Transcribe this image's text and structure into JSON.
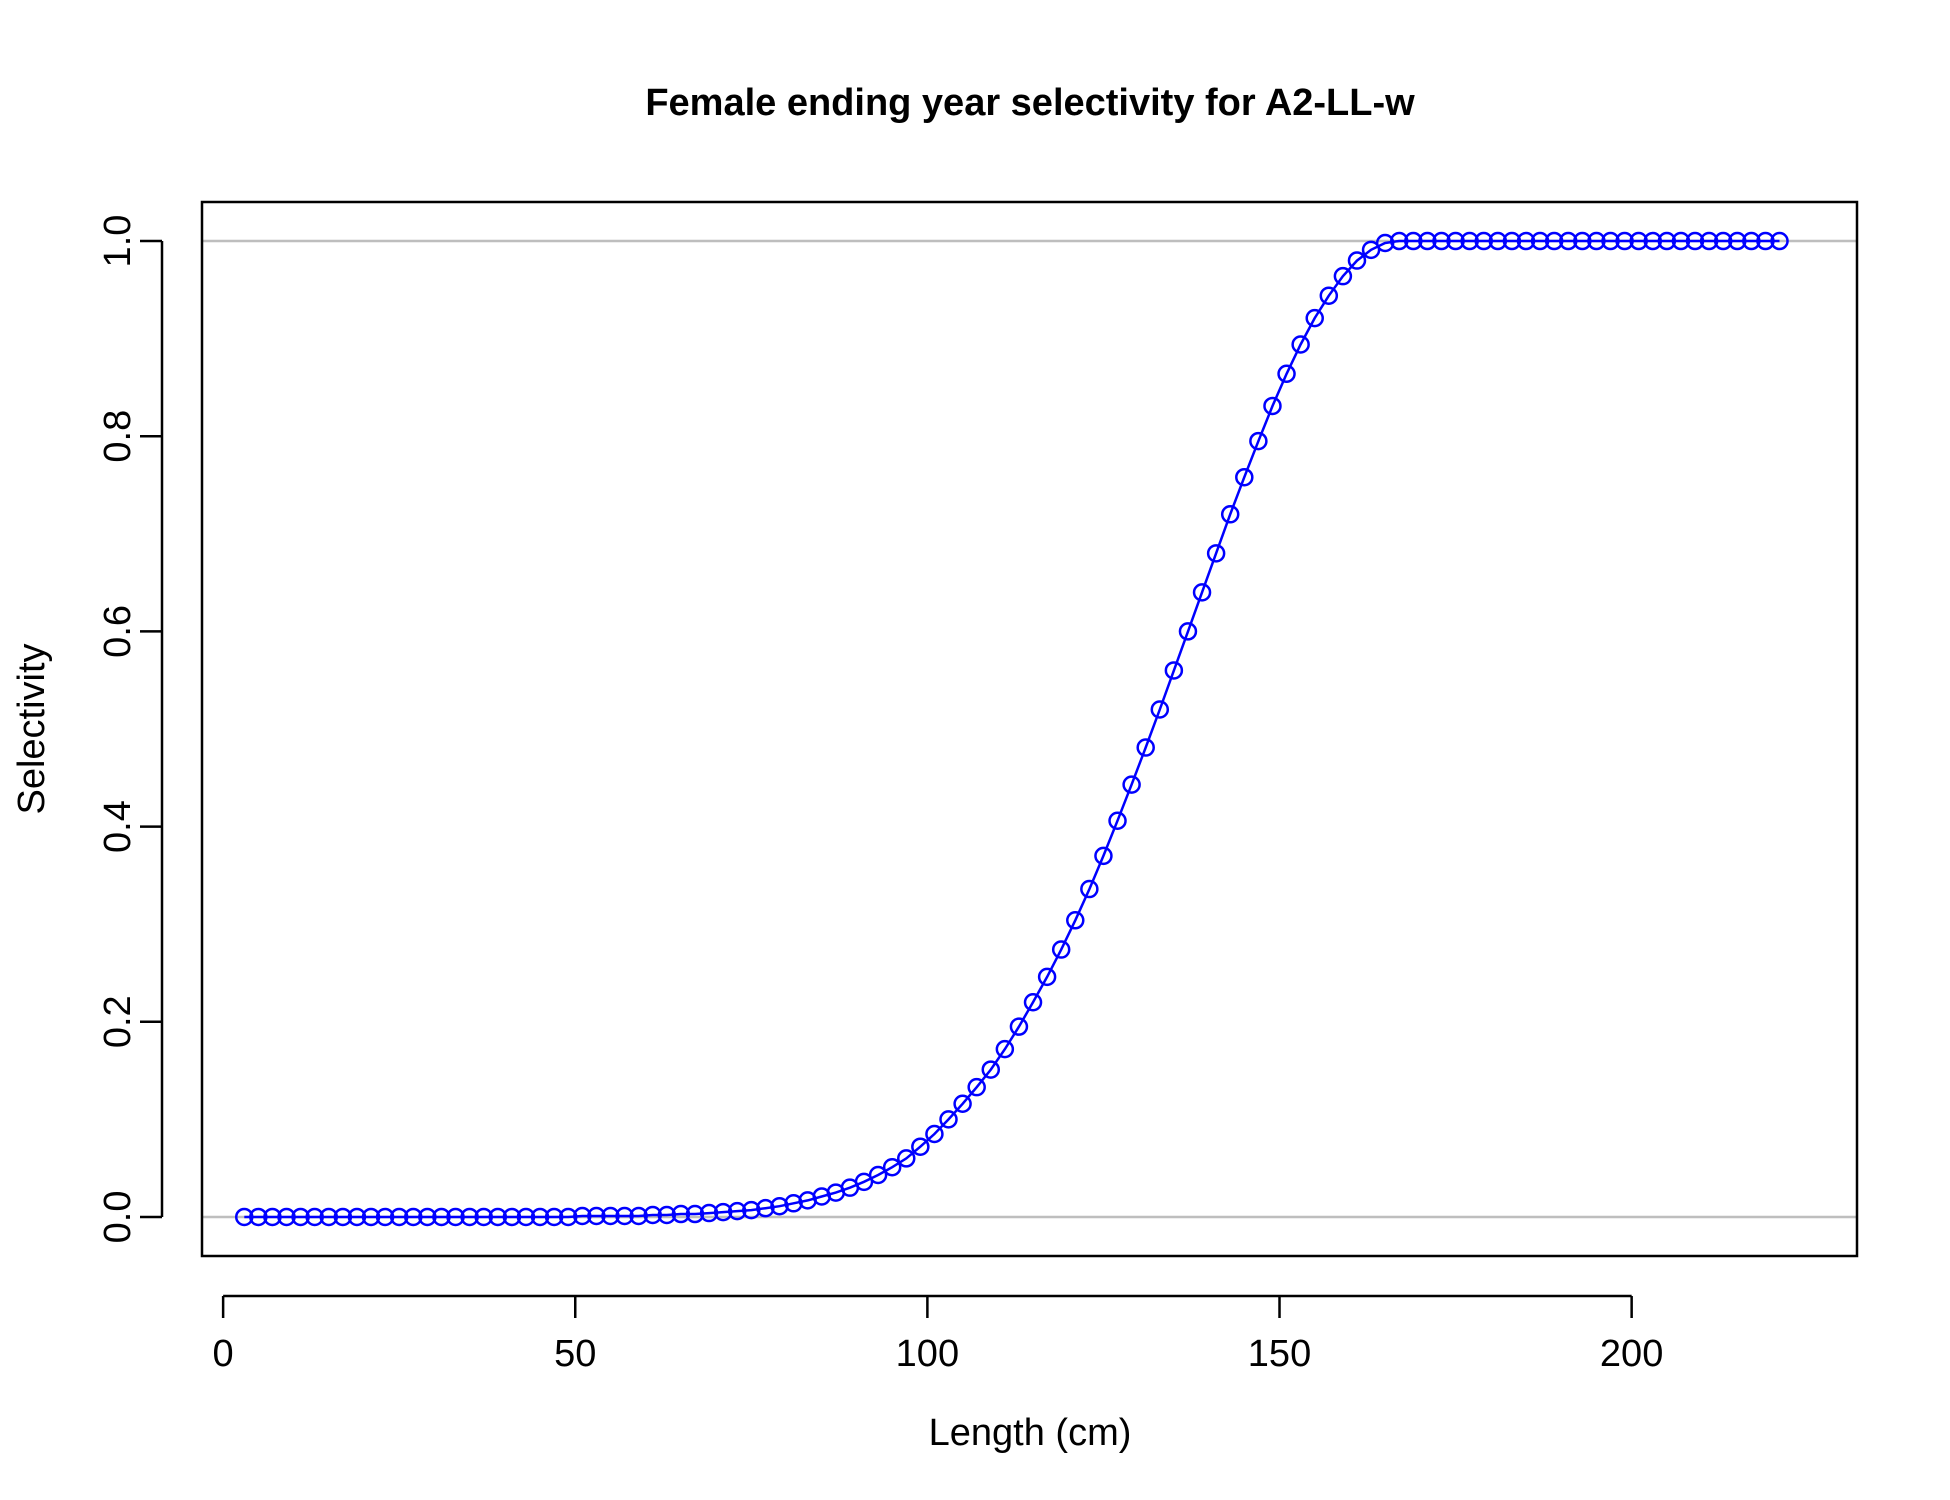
{
  "chart_data": {
    "type": "line",
    "title": "Female ending year selectivity for A2-LL-w",
    "xlabel": "Length (cm)",
    "ylabel": "Selectivity",
    "xlim": [
      -3,
      232
    ],
    "ylim": [
      -0.04,
      1.04
    ],
    "xticks": [
      0,
      50,
      100,
      150,
      200
    ],
    "xtick_labels": [
      "0",
      "50",
      "100",
      "150",
      "200"
    ],
    "yticks": [
      0.0,
      0.2,
      0.4,
      0.6,
      0.8,
      1.0
    ],
    "ytick_labels": [
      "0.0",
      "0.2",
      "0.4",
      "0.6",
      "0.8",
      "1.0"
    ],
    "reference_lines_y": [
      0,
      1
    ],
    "reference_line_color": "#bebebe",
    "series": [
      {
        "color": "#0000ff",
        "marker": "open-circle",
        "x": [
          3,
          5,
          7,
          9,
          11,
          13,
          15,
          17,
          19,
          21,
          23,
          25,
          27,
          29,
          31,
          33,
          35,
          37,
          39,
          41,
          43,
          45,
          47,
          49,
          51,
          53,
          55,
          57,
          59,
          61,
          63,
          65,
          67,
          69,
          71,
          73,
          75,
          77,
          79,
          81,
          83,
          85,
          87,
          89,
          91,
          93,
          95,
          97,
          99,
          101,
          103,
          105,
          107,
          109,
          111,
          113,
          115,
          117,
          119,
          121,
          123,
          125,
          127,
          129,
          131,
          133,
          135,
          137,
          139,
          141,
          143,
          145,
          147,
          149,
          151,
          153,
          155,
          157,
          159,
          161,
          163,
          165,
          167,
          169,
          171,
          173,
          175,
          177,
          179,
          181,
          183,
          185,
          187,
          189,
          191,
          193,
          195,
          197,
          199,
          201,
          203,
          205,
          207,
          209,
          211,
          213,
          215,
          217,
          219,
          221
        ],
        "y": [
          0,
          0,
          0,
          0,
          0,
          0,
          0,
          0,
          0,
          0,
          0,
          0,
          0,
          0,
          0,
          0,
          0,
          0,
          0,
          0,
          0,
          0,
          0,
          0,
          0.001,
          0.001,
          0.001,
          0.001,
          0.001,
          0.002,
          0.002,
          0.003,
          0.003,
          0.004,
          0.005,
          0.006,
          0.007,
          0.009,
          0.011,
          0.014,
          0.017,
          0.021,
          0.025,
          0.03,
          0.036,
          0.043,
          0.051,
          0.06,
          0.072,
          0.085,
          0.1,
          0.116,
          0.133,
          0.151,
          0.172,
          0.195,
          0.22,
          0.246,
          0.274,
          0.304,
          0.336,
          0.37,
          0.406,
          0.443,
          0.481,
          0.52,
          0.56,
          0.6,
          0.64,
          0.68,
          0.72,
          0.758,
          0.795,
          0.831,
          0.864,
          0.894,
          0.921,
          0.944,
          0.964,
          0.98,
          0.991,
          0.998,
          1.0,
          1.0,
          1.0,
          1.0,
          1.0,
          1.0,
          1.0,
          1.0,
          1.0,
          1.0,
          1.0,
          1.0,
          1.0,
          1.0,
          1.0,
          1.0,
          1.0,
          1.0,
          1.0,
          1.0,
          1.0,
          1.0,
          1.0,
          1.0,
          1.0,
          1.0,
          1.0,
          1.0
        ]
      }
    ]
  }
}
